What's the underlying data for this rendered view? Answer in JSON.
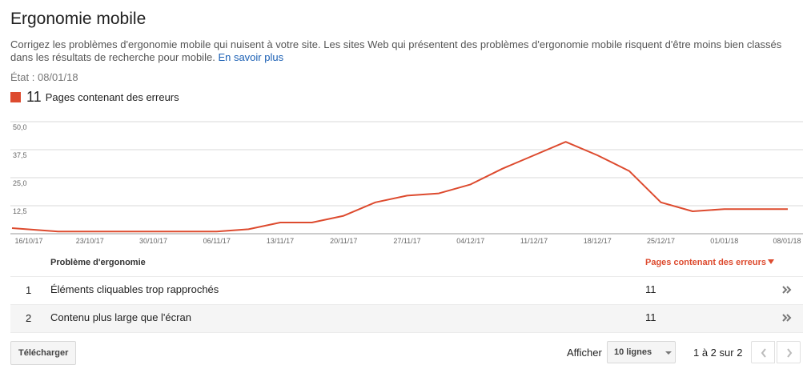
{
  "page": {
    "title": "Ergonomie mobile",
    "description": "Corrigez les problèmes d'ergonomie mobile qui nuisent à votre site. Les sites Web qui présentent des problèmes d'ergonomie mobile risquent d'être moins bien classés dans les résultats de recherche pour mobile.",
    "learn_more": "En savoir plus",
    "status": "État : 08/01/18"
  },
  "legend": {
    "value": "11",
    "label": "Pages contenant des erreurs",
    "color": "#dd4b2f"
  },
  "chart_data": {
    "type": "line",
    "x": [
      "16/10/17",
      "20/10/17",
      "23/10/17",
      "27/10/17",
      "30/10/17",
      "03/11/17",
      "06/11/17",
      "10/11/17",
      "13/11/17",
      "17/11/17",
      "20/11/17",
      "24/11/17",
      "27/11/17",
      "01/12/17",
      "04/12/17",
      "08/12/17",
      "11/12/17",
      "15/12/17",
      "18/12/17",
      "22/12/17",
      "25/12/17",
      "29/12/17",
      "01/01/18",
      "05/01/18",
      "08/01/18"
    ],
    "x_ticks": [
      "16/10/17",
      "23/10/17",
      "30/10/17",
      "06/11/17",
      "13/11/17",
      "20/11/17",
      "27/11/17",
      "04/12/17",
      "11/12/17",
      "18/12/17",
      "25/12/17",
      "01/01/18",
      "08/01/18"
    ],
    "series": [
      {
        "color": "#dd4b2f",
        "values": [
          2.5,
          1,
          1,
          1,
          1,
          1,
          1,
          2,
          5,
          5,
          8,
          14,
          17,
          18,
          22,
          29,
          35,
          41,
          35,
          28,
          14,
          10,
          11,
          11,
          11
        ]
      }
    ],
    "y_ticks": [
      "50,0",
      "37,5",
      "25,0",
      "12,5"
    ],
    "ylim": [
      0,
      50
    ],
    "grid": true
  },
  "table": {
    "headers": {
      "problem": "Problème d'ergonomie",
      "pages": "Pages contenant des erreurs"
    },
    "rows": [
      {
        "index": "1",
        "label": "Éléments cliquables trop rapprochés",
        "count": "11"
      },
      {
        "index": "2",
        "label": "Contenu plus large que l'écran",
        "count": "11"
      }
    ]
  },
  "footer": {
    "download": "Télécharger",
    "show_label": "Afficher",
    "rows_select": "10 lignes",
    "pagination": "1 à 2 sur 2"
  },
  "icons": {
    "row_chevron": "double-chevron-right-icon",
    "sort": "sort-down-icon",
    "prev": "chevron-left-icon",
    "next": "chevron-right-icon"
  }
}
